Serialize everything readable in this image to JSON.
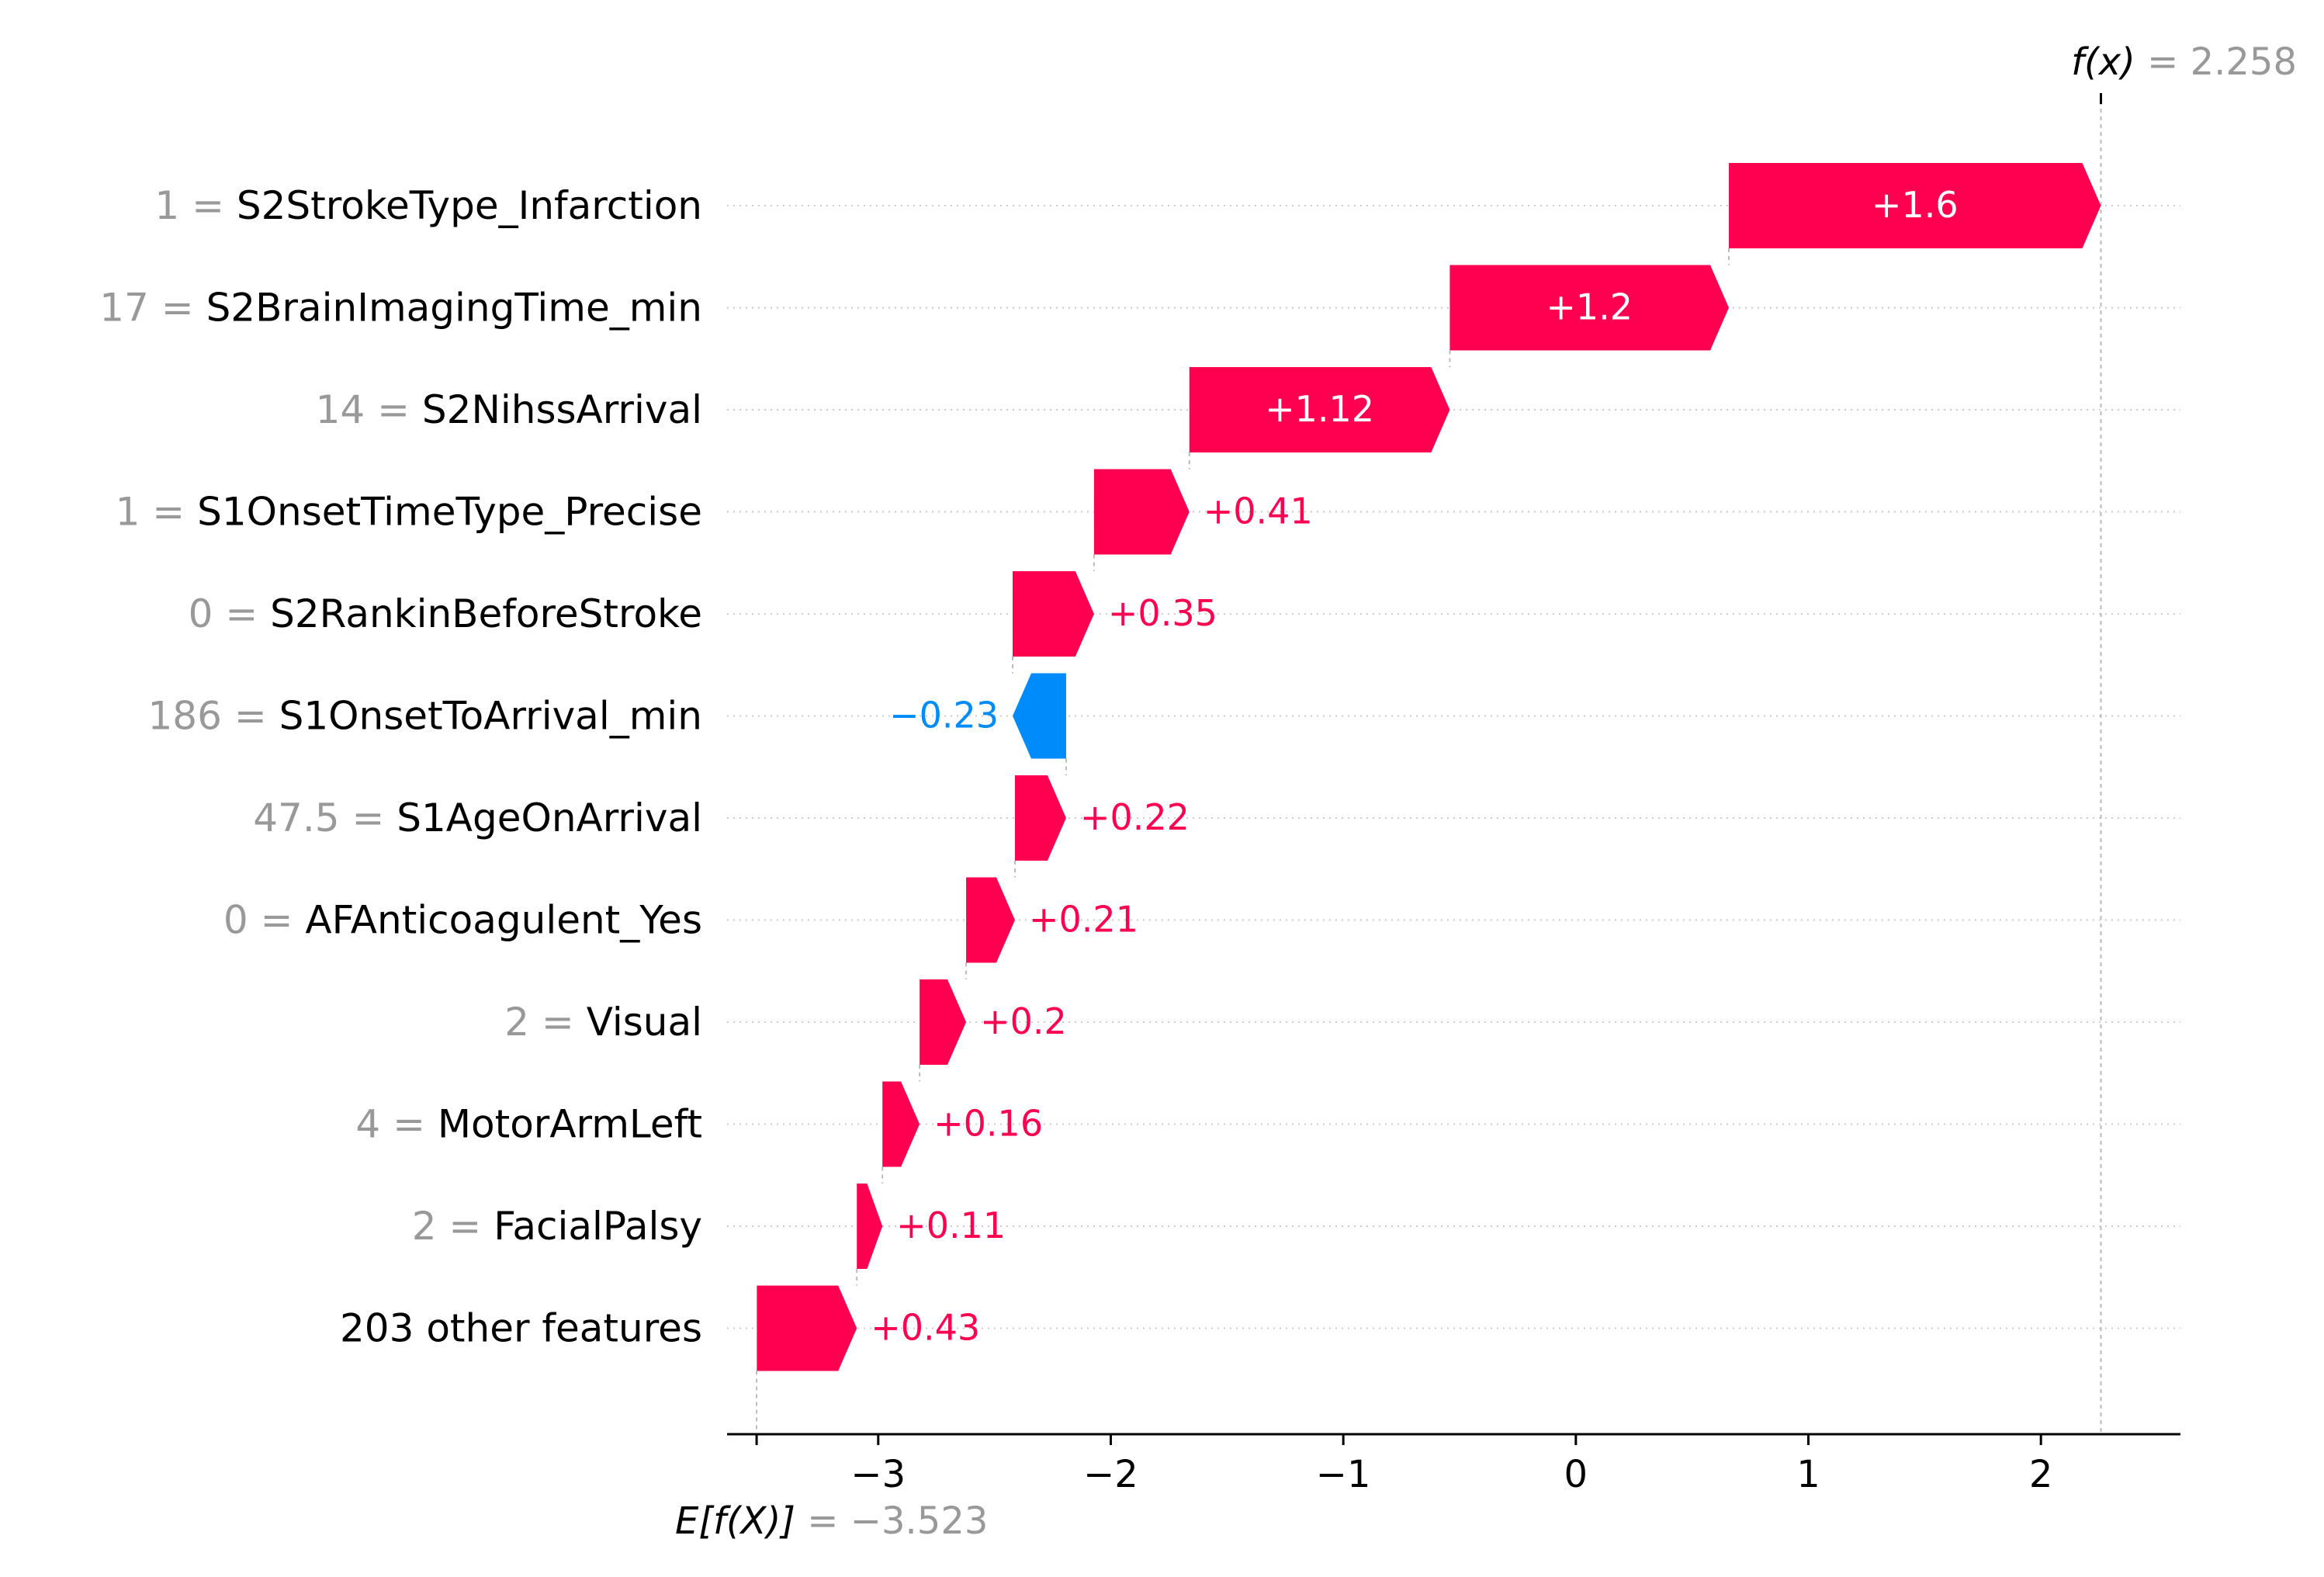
{
  "chart_data": {
    "type": "waterfall",
    "xlim": [
      -3.65,
      2.6
    ],
    "xticks": [
      -3,
      -2,
      -1,
      0,
      1,
      2
    ],
    "xtick_labels": [
      "−3",
      "−2",
      "−1",
      "0",
      "1",
      "2"
    ],
    "base_value": -3.523,
    "base_value_label": "= −3.523",
    "base_value_prefix": "E[f(X)]",
    "output_value": 2.258,
    "output_value_label": "= 2.258",
    "output_value_prefix": "f(x)",
    "colors": {
      "positive": "#ff0051",
      "negative": "#008bfb",
      "label_gray": "#999999"
    },
    "rows": [
      {
        "value_text": "1",
        "feature": "S2StrokeType_Infarction",
        "contribution": 1.6,
        "label": "+1.6"
      },
      {
        "value_text": "17",
        "feature": "S2BrainImagingTime_min",
        "contribution": 1.2,
        "label": "+1.2"
      },
      {
        "value_text": "14",
        "feature": "S2NihssArrival",
        "contribution": 1.12,
        "label": "+1.12"
      },
      {
        "value_text": "1",
        "feature": "S1OnsetTimeType_Precise",
        "contribution": 0.41,
        "label": "+0.41"
      },
      {
        "value_text": "0",
        "feature": "S2RankinBeforeStroke",
        "contribution": 0.35,
        "label": "+0.35"
      },
      {
        "value_text": "186",
        "feature": "S1OnsetToArrival_min",
        "contribution": -0.23,
        "label": "−0.23"
      },
      {
        "value_text": "47.5",
        "feature": "S1AgeOnArrival",
        "contribution": 0.22,
        "label": "+0.22"
      },
      {
        "value_text": "0",
        "feature": "AFAnticoagulent_Yes",
        "contribution": 0.21,
        "label": "+0.21"
      },
      {
        "value_text": "2",
        "feature": "Visual",
        "contribution": 0.2,
        "label": "+0.2"
      },
      {
        "value_text": "4",
        "feature": "MotorArmLeft",
        "contribution": 0.16,
        "label": "+0.16"
      },
      {
        "value_text": "2",
        "feature": "FacialPalsy",
        "contribution": 0.11,
        "label": "+0.11"
      },
      {
        "value_text": "",
        "feature": "203 other features",
        "contribution": 0.43,
        "label": "+0.43"
      }
    ]
  }
}
